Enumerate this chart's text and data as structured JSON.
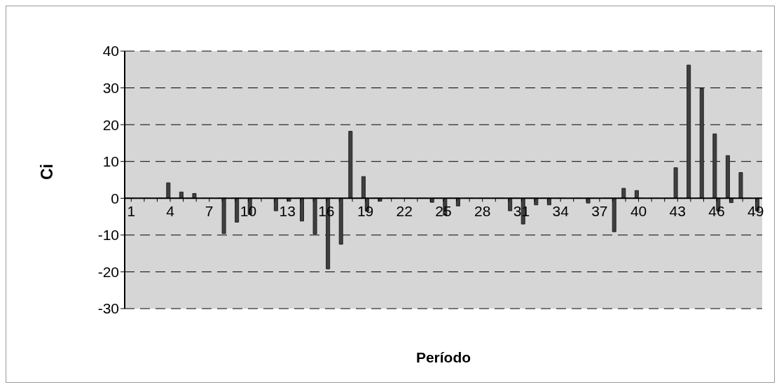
{
  "chart_data": {
    "type": "bar",
    "xlabel": "Período",
    "ylabel": "Ci",
    "categories": [
      "1",
      null,
      null,
      "4",
      null,
      null,
      "7",
      null,
      null,
      "10",
      null,
      null,
      "13",
      null,
      null,
      "16",
      null,
      null,
      "19",
      null,
      null,
      "22",
      null,
      null,
      "25",
      null,
      null,
      "28",
      null,
      null,
      "31",
      null,
      null,
      "34",
      null,
      null,
      "37",
      null,
      null,
      "40",
      null,
      null,
      "43",
      null,
      null,
      "46",
      null,
      null,
      "49"
    ],
    "series": [
      {
        "color": "#3f3f3f",
        "values": [
          null,
          null,
          null,
          4.2,
          1.7,
          1.3,
          null,
          null,
          null,
          null,
          null,
          null,
          null,
          null,
          null,
          null,
          null,
          18.2,
          5.9,
          null,
          null,
          null,
          null,
          null,
          null,
          null,
          null,
          null,
          null,
          null,
          null,
          null,
          null,
          null,
          null,
          null,
          null,
          null,
          2.7,
          2.1,
          null,
          null,
          8.3,
          36.2,
          29.8,
          17.5,
          11.6,
          7.0,
          null
        ]
      },
      {
        "color": "#3f3f3f",
        "values": [
          null,
          null,
          null,
          null,
          null,
          null,
          null,
          -9.6,
          -6.5,
          -4.4,
          null,
          -3.4,
          -0.8,
          -6.2,
          -9.7,
          -19.2,
          -12.5,
          null,
          -3.5,
          -0.8,
          null,
          null,
          null,
          -1.1,
          -4.6,
          -2.1,
          null,
          null,
          null,
          -3.4,
          -7.0,
          -1.8,
          -1.8,
          null,
          null,
          -1.3,
          null,
          -9.1,
          null,
          null,
          null,
          null,
          null,
          null,
          null,
          -3.4,
          -1.2,
          null,
          -3.4
        ]
      }
    ],
    "ylim": [
      -30,
      40
    ],
    "yticks": [
      -30,
      -20,
      -10,
      0,
      10,
      20,
      30,
      40
    ],
    "grid": "y"
  }
}
